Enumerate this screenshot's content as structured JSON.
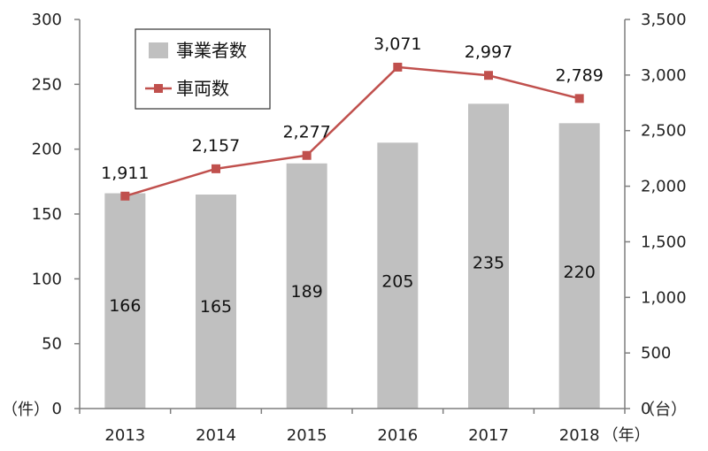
{
  "chart_data": {
    "type": "bar",
    "categories": [
      "2013",
      "2014",
      "2015",
      "2016",
      "2017",
      "2018"
    ],
    "series": [
      {
        "name": "事業者数",
        "type": "bar",
        "axis": "left",
        "values": [
          166,
          165,
          189,
          205,
          235,
          220
        ]
      },
      {
        "name": "車両数",
        "type": "line",
        "axis": "right",
        "values": [
          1911,
          2157,
          2277,
          3071,
          2997,
          2789
        ],
        "labels": [
          "1,911",
          "2,157",
          "2,277",
          "3,071",
          "2,997",
          "2,789"
        ]
      }
    ],
    "left_axis": {
      "unit": "（件）",
      "ylim": [
        0,
        300
      ],
      "ticks": [
        0,
        50,
        100,
        150,
        200,
        250,
        300
      ]
    },
    "right_axis": {
      "unit": "（台）",
      "ylim": [
        0,
        3500
      ],
      "ticks": [
        0,
        500,
        1000,
        1500,
        2000,
        2500,
        3000,
        3500
      ],
      "tick_labels": [
        "0",
        "500",
        "1,000",
        "1,500",
        "2,000",
        "2,500",
        "3,000",
        "3,500"
      ]
    },
    "x_unit": "（年）",
    "legend_position": "top-left",
    "grid": false,
    "colors": {
      "bar": "#c0c0c0",
      "line": "#c0504d",
      "axis": "#7f7f7f"
    }
  }
}
